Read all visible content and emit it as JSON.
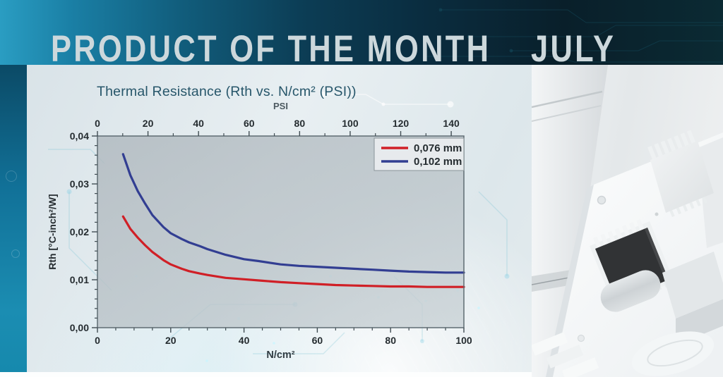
{
  "header": {
    "title": "PRODUCT OF THE MONTH",
    "month": "JULY"
  },
  "chart_data": {
    "type": "line",
    "title": "Thermal Resistance (Rth vs. N/cm² (PSI))",
    "grid": false,
    "legend_position": "top-right",
    "top_axis": {
      "label": "PSI",
      "min": 0,
      "max": 145,
      "major_ticks": [
        0,
        20,
        40,
        60,
        80,
        100,
        120,
        140
      ],
      "minor_step": 10
    },
    "x_axis": {
      "label": "N/cm²",
      "min": 0,
      "max": 100,
      "major_ticks": [
        0,
        20,
        40,
        60,
        80,
        100
      ],
      "minor_step": 5
    },
    "y_axis": {
      "label": "Rth [°C-inch²/W]",
      "min": 0,
      "max": 0.04,
      "major_ticks": [
        {
          "v": 0.0,
          "label": "0,00"
        },
        {
          "v": 0.01,
          "label": "0,01"
        },
        {
          "v": 0.02,
          "label": "0,02"
        },
        {
          "v": 0.03,
          "label": "0,03"
        },
        {
          "v": 0.04,
          "label": "0,04"
        }
      ],
      "minor_step": 0.002
    },
    "series": [
      {
        "name": "0,076 mm",
        "color": "#d01f26",
        "points": [
          [
            7,
            0.0232
          ],
          [
            9,
            0.0206
          ],
          [
            11,
            0.0188
          ],
          [
            13,
            0.0172
          ],
          [
            15,
            0.0158
          ],
          [
            18,
            0.0141
          ],
          [
            20,
            0.0132
          ],
          [
            23,
            0.0123
          ],
          [
            25,
            0.0118
          ],
          [
            28,
            0.0113
          ],
          [
            30,
            0.011
          ],
          [
            35,
            0.0104
          ],
          [
            40,
            0.0101
          ],
          [
            45,
            0.0098
          ],
          [
            50,
            0.0095
          ],
          [
            55,
            0.0093
          ],
          [
            60,
            0.0091
          ],
          [
            65,
            0.0089
          ],
          [
            70,
            0.0088
          ],
          [
            75,
            0.0087
          ],
          [
            80,
            0.0086
          ],
          [
            85,
            0.0086
          ],
          [
            90,
            0.0085
          ],
          [
            95,
            0.0085
          ],
          [
            100,
            0.0085
          ]
        ]
      },
      {
        "name": "0,102 mm",
        "color": "#323e92",
        "points": [
          [
            7,
            0.0362
          ],
          [
            9,
            0.0318
          ],
          [
            11,
            0.0285
          ],
          [
            13,
            0.0259
          ],
          [
            15,
            0.0235
          ],
          [
            18,
            0.021
          ],
          [
            20,
            0.0197
          ],
          [
            23,
            0.0185
          ],
          [
            25,
            0.0178
          ],
          [
            28,
            0.017
          ],
          [
            30,
            0.0164
          ],
          [
            35,
            0.0152
          ],
          [
            40,
            0.0143
          ],
          [
            44,
            0.0139
          ],
          [
            50,
            0.0132
          ],
          [
            55,
            0.0129
          ],
          [
            60,
            0.0127
          ],
          [
            65,
            0.0125
          ],
          [
            70,
            0.0123
          ],
          [
            75,
            0.0121
          ],
          [
            80,
            0.0119
          ],
          [
            85,
            0.0117
          ],
          [
            90,
            0.0116
          ],
          [
            95,
            0.0115
          ],
          [
            100,
            0.0115
          ]
        ]
      }
    ]
  },
  "colors": {
    "header_teal": "#1a7fa5",
    "header_dark": "#091f2a",
    "panel_bg": "#e3ebee",
    "title_text": "#27566a",
    "series_red": "#d01f26",
    "series_blue": "#323e92"
  }
}
